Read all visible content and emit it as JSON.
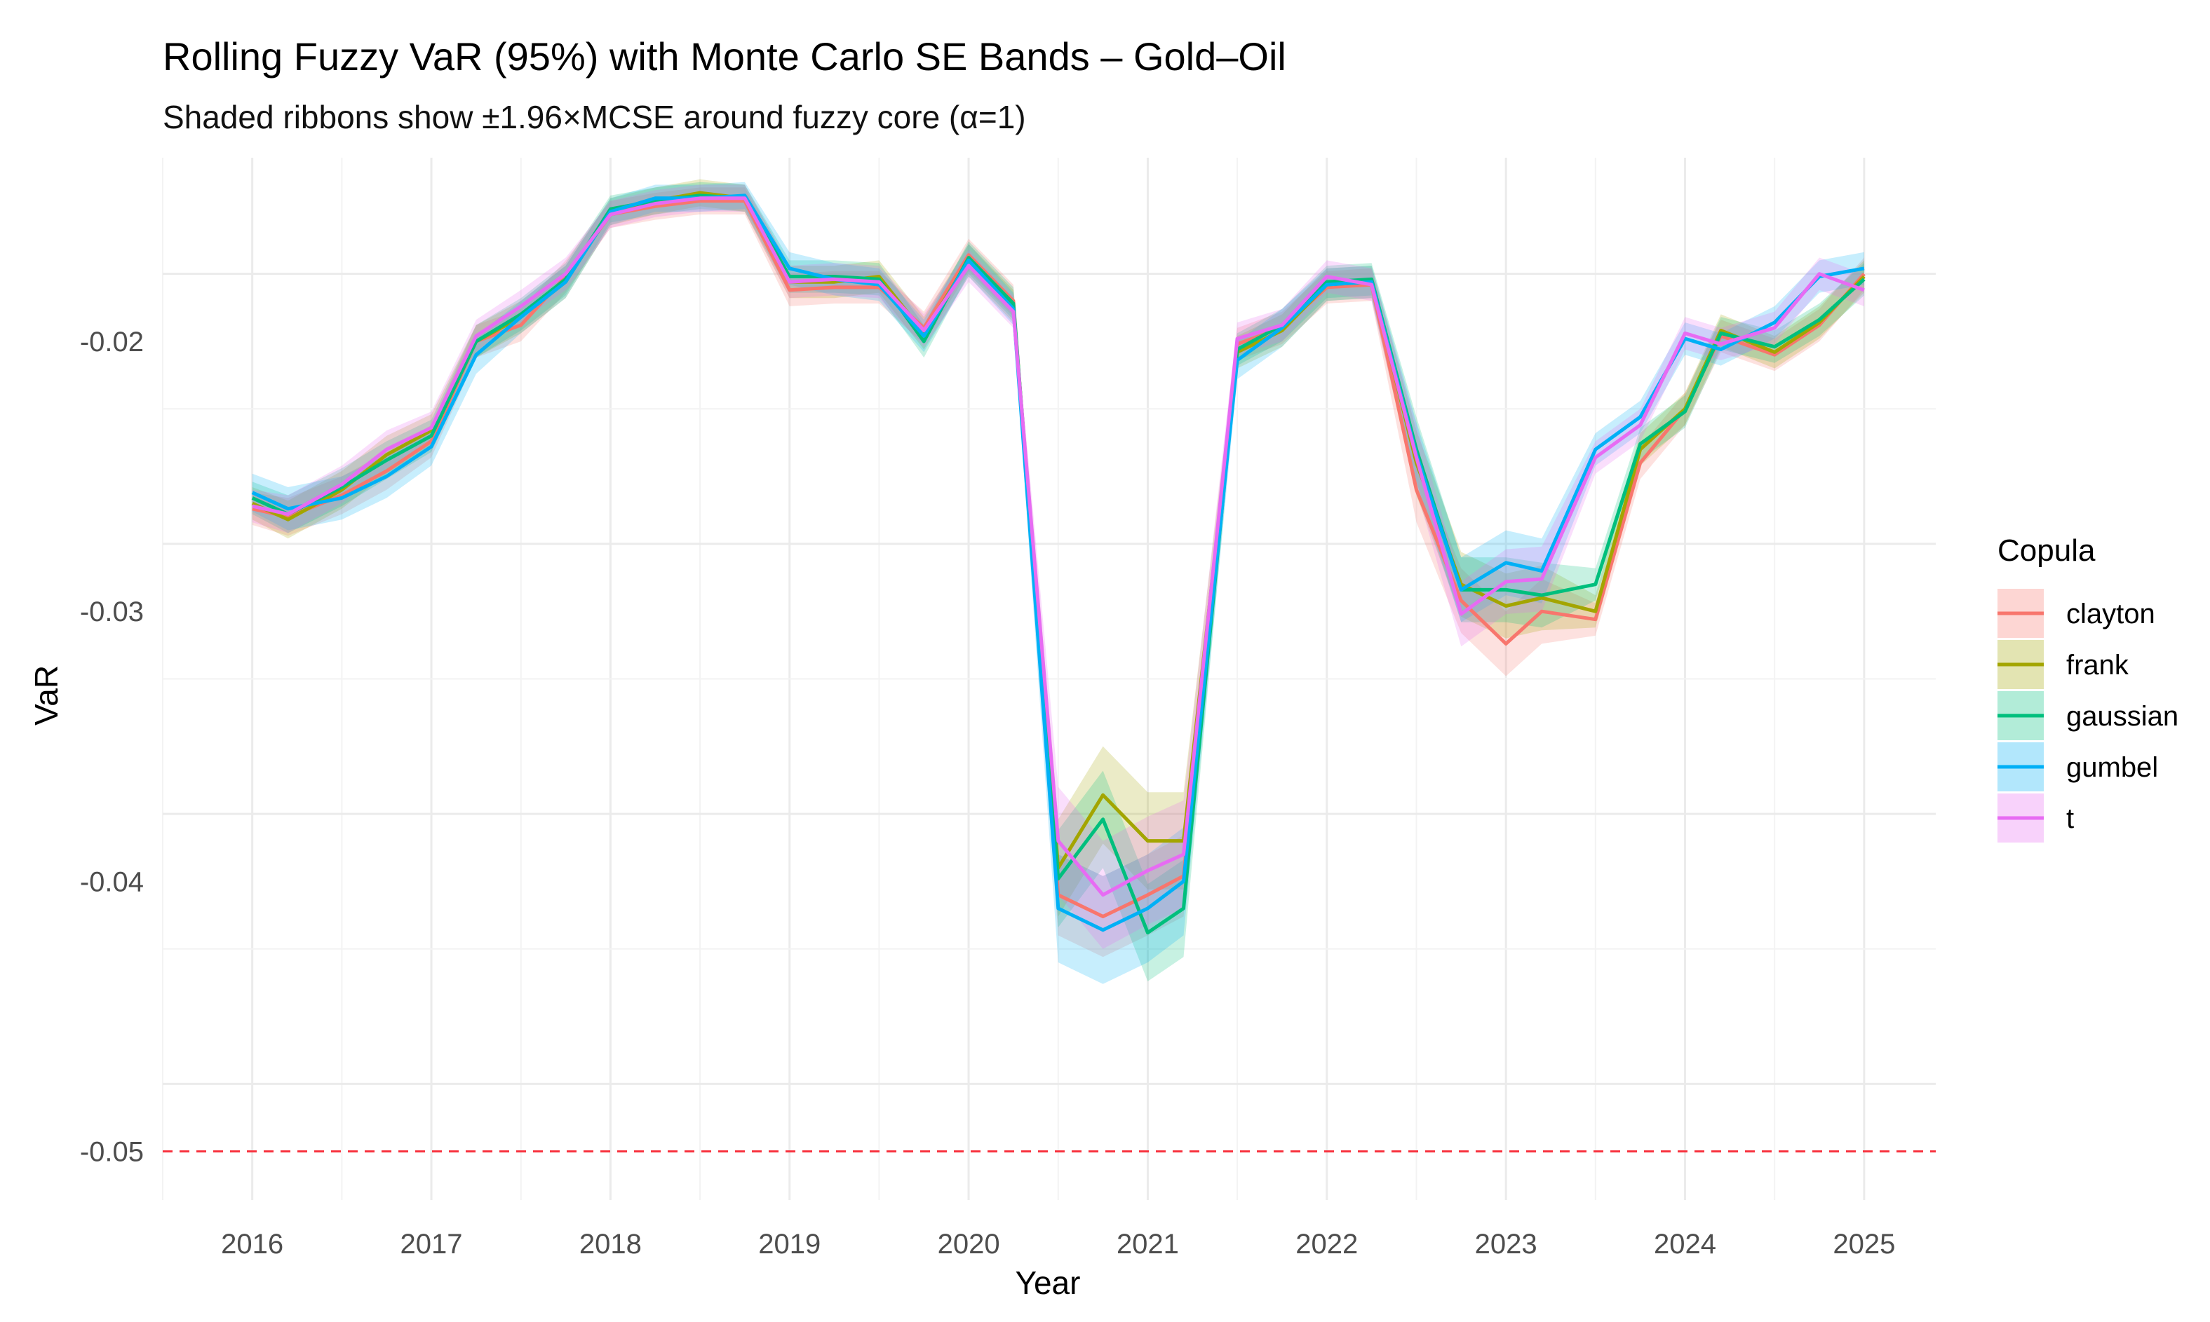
{
  "chart_data": {
    "type": "line",
    "title": "Rolling Fuzzy VaR (95%) with Monte Carlo SE Bands – Gold–Oil",
    "subtitle": "Shaded ribbons show ±1.96×MCSE around fuzzy core (α=1)",
    "xlabel": "Year",
    "ylabel": "VaR",
    "xlim": [
      2015.5,
      2025.4
    ],
    "ylim": [
      -0.0518,
      -0.0132
    ],
    "x_ticks": [
      "2016",
      "2017",
      "2018",
      "2019",
      "2020",
      "2021",
      "2022",
      "2023",
      "2024",
      "2025"
    ],
    "y_ticks": [
      "-0.05",
      "-0.04",
      "-0.03",
      "-0.02"
    ],
    "grid": true,
    "legend_title": "Copula",
    "legend_position": "right",
    "reference_line": {
      "y": -0.05,
      "color": "#F8333F",
      "style": "dashed"
    },
    "x": [
      2016.0,
      2016.2,
      2016.5,
      2016.75,
      2017.0,
      2017.25,
      2017.5,
      2017.75,
      2018.0,
      2018.25,
      2018.5,
      2018.75,
      2019.0,
      2019.25,
      2019.5,
      2019.75,
      2020.0,
      2020.25,
      2020.5,
      2020.75,
      2021.0,
      2021.2,
      2021.5,
      2021.75,
      2022.0,
      2022.25,
      2022.5,
      2022.75,
      2023.0,
      2023.2,
      2023.5,
      2023.75,
      2024.0,
      2024.2,
      2024.5,
      2024.75,
      2025.0
    ],
    "series": [
      {
        "name": "clayton",
        "color": "#F8766D",
        "values": [
          -0.0262,
          -0.0265,
          -0.0257,
          -0.0248,
          -0.0237,
          -0.02,
          -0.0194,
          -0.0176,
          -0.0153,
          -0.015,
          -0.0148,
          -0.0148,
          -0.0181,
          -0.018,
          -0.018,
          -0.0195,
          -0.0168,
          -0.0185,
          -0.0405,
          -0.0413,
          -0.0405,
          -0.0398,
          -0.0201,
          -0.0195,
          -0.018,
          -0.0179,
          -0.0255,
          -0.0296,
          -0.0312,
          -0.03,
          -0.0303,
          -0.0245,
          -0.0225,
          -0.0198,
          -0.0205,
          -0.0194,
          -0.0175
        ],
        "mcse_half": [
          0.0006,
          0.0007,
          0.0007,
          0.0007,
          0.0006,
          0.0006,
          0.0006,
          0.0006,
          0.0005,
          0.0005,
          0.0005,
          0.0005,
          0.0006,
          0.0006,
          0.0006,
          0.0006,
          0.0006,
          0.0006,
          0.0015,
          0.0015,
          0.0015,
          0.0015,
          0.0006,
          0.0006,
          0.0006,
          0.0006,
          0.0012,
          0.0012,
          0.0012,
          0.0012,
          0.0006,
          0.0006,
          0.0006,
          0.0006,
          0.0006,
          0.0006,
          0.0006
        ]
      },
      {
        "name": "frank",
        "color": "#A3A500",
        "values": [
          -0.026,
          -0.0266,
          -0.0255,
          -0.0242,
          -0.0233,
          -0.02,
          -0.0191,
          -0.0178,
          -0.0152,
          -0.0148,
          -0.0145,
          -0.0147,
          -0.0178,
          -0.0178,
          -0.0176,
          -0.0197,
          -0.017,
          -0.0187,
          -0.0395,
          -0.0368,
          -0.0385,
          -0.0385,
          -0.0204,
          -0.0196,
          -0.0179,
          -0.0178,
          -0.0245,
          -0.029,
          -0.0298,
          -0.0295,
          -0.03,
          -0.024,
          -0.0225,
          -0.0196,
          -0.0204,
          -0.0193,
          -0.0176
        ],
        "mcse_half": [
          0.0006,
          0.0007,
          0.0007,
          0.0007,
          0.0006,
          0.0006,
          0.0006,
          0.0006,
          0.0005,
          0.0005,
          0.0005,
          0.0005,
          0.0006,
          0.0006,
          0.0006,
          0.0006,
          0.0006,
          0.0006,
          0.0018,
          0.0018,
          0.0018,
          0.0018,
          0.0006,
          0.0006,
          0.0006,
          0.0006,
          0.0012,
          0.0012,
          0.0012,
          0.0012,
          0.0006,
          0.0006,
          0.0006,
          0.0006,
          0.0006,
          0.0006,
          0.0006
        ]
      },
      {
        "name": "gaussian",
        "color": "#00BF7D",
        "values": [
          -0.0258,
          -0.0264,
          -0.0254,
          -0.0244,
          -0.0235,
          -0.02,
          -0.019,
          -0.0177,
          -0.0151,
          -0.0148,
          -0.0146,
          -0.0147,
          -0.0176,
          -0.0176,
          -0.0177,
          -0.02,
          -0.0169,
          -0.0186,
          -0.0399,
          -0.0377,
          -0.0419,
          -0.041,
          -0.0203,
          -0.0194,
          -0.0178,
          -0.0177,
          -0.024,
          -0.0292,
          -0.0292,
          -0.0294,
          -0.029,
          -0.0238,
          -0.0226,
          -0.0197,
          -0.0202,
          -0.0192,
          -0.0177
        ],
        "mcse_half": [
          0.0006,
          0.0007,
          0.0007,
          0.0007,
          0.0006,
          0.0006,
          0.0006,
          0.0006,
          0.0005,
          0.0005,
          0.0005,
          0.0005,
          0.0006,
          0.0006,
          0.0006,
          0.0006,
          0.0006,
          0.0006,
          0.0018,
          0.0018,
          0.0018,
          0.0018,
          0.0006,
          0.0006,
          0.0006,
          0.0006,
          0.0012,
          0.0012,
          0.0012,
          0.0012,
          0.0006,
          0.0006,
          0.0006,
          0.0006,
          0.0006,
          0.0006,
          0.0006
        ]
      },
      {
        "name": "gumbel",
        "color": "#00B0F6",
        "values": [
          -0.0256,
          -0.0262,
          -0.0258,
          -0.025,
          -0.0239,
          -0.0205,
          -0.0191,
          -0.0178,
          -0.0152,
          -0.0147,
          -0.0147,
          -0.0146,
          -0.0173,
          -0.0177,
          -0.0179,
          -0.0198,
          -0.017,
          -0.0188,
          -0.041,
          -0.0418,
          -0.041,
          -0.04,
          -0.0207,
          -0.0195,
          -0.0179,
          -0.0178,
          -0.0242,
          -0.0292,
          -0.0282,
          -0.0285,
          -0.024,
          -0.0228,
          -0.0199,
          -0.0203,
          -0.0193,
          -0.0176,
          -0.0173
        ],
        "mcse_half": [
          0.0007,
          0.0008,
          0.0008,
          0.0008,
          0.0007,
          0.0007,
          0.0006,
          0.0006,
          0.0005,
          0.0005,
          0.0005,
          0.0005,
          0.0006,
          0.0006,
          0.0006,
          0.0006,
          0.0006,
          0.0006,
          0.002,
          0.002,
          0.002,
          0.002,
          0.0007,
          0.0007,
          0.0006,
          0.0006,
          0.0012,
          0.0012,
          0.0012,
          0.0012,
          0.0006,
          0.0006,
          0.0006,
          0.0006,
          0.0006,
          0.0006,
          0.0006
        ]
      },
      {
        "name": "t",
        "color": "#E76BF3",
        "values": [
          -0.0261,
          -0.0264,
          -0.0253,
          -0.024,
          -0.0232,
          -0.0198,
          -0.0187,
          -0.0175,
          -0.0153,
          -0.0149,
          -0.0147,
          -0.0147,
          -0.0178,
          -0.0177,
          -0.0178,
          -0.0196,
          -0.0172,
          -0.0189,
          -0.0385,
          -0.0405,
          -0.0396,
          -0.039,
          -0.0199,
          -0.0194,
          -0.0176,
          -0.0179,
          -0.0243,
          -0.0301,
          -0.0289,
          -0.0288,
          -0.0243,
          -0.0231,
          -0.0197,
          -0.0201,
          -0.0195,
          -0.0175,
          -0.0181
        ],
        "mcse_half": [
          0.0006,
          0.0007,
          0.0007,
          0.0007,
          0.0006,
          0.0006,
          0.0006,
          0.0006,
          0.0005,
          0.0005,
          0.0005,
          0.0005,
          0.0006,
          0.0006,
          0.0006,
          0.0006,
          0.0006,
          0.0006,
          0.002,
          0.002,
          0.002,
          0.002,
          0.0006,
          0.0006,
          0.0006,
          0.0006,
          0.0012,
          0.0012,
          0.0012,
          0.0012,
          0.0006,
          0.0006,
          0.0006,
          0.0006,
          0.0006,
          0.0006,
          0.0006
        ]
      }
    ]
  }
}
